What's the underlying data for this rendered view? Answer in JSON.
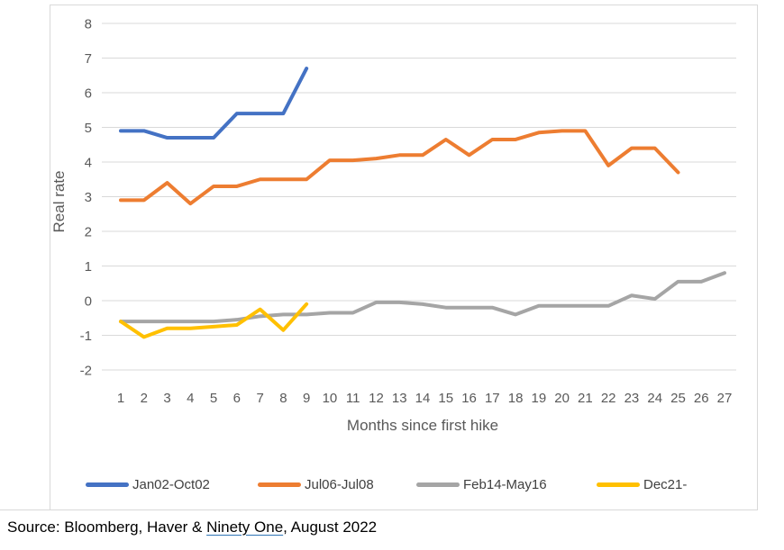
{
  "chart_data": {
    "type": "line",
    "title": "",
    "xlabel": "Months since first hike",
    "ylabel": "Real rate",
    "x": [
      1,
      2,
      3,
      4,
      5,
      6,
      7,
      8,
      9,
      10,
      11,
      12,
      13,
      14,
      15,
      16,
      17,
      18,
      19,
      20,
      21,
      22,
      23,
      24,
      25,
      26,
      27
    ],
    "yticks": [
      8,
      7,
      6,
      5,
      4,
      3,
      2,
      1,
      0,
      -1,
      -2
    ],
    "ylim": [
      -2,
      8
    ],
    "grid": "horizontal",
    "legend_position": "bottom",
    "series": [
      {
        "name": "Jan02-Oct02",
        "color": "#4472C4",
        "values": [
          4.9,
          4.9,
          4.7,
          4.7,
          4.7,
          5.4,
          5.4,
          5.4,
          6.7
        ]
      },
      {
        "name": "Jul06-Jul08",
        "color": "#ED7D31",
        "values": [
          2.9,
          2.9,
          3.4,
          2.8,
          3.3,
          3.3,
          3.5,
          3.5,
          3.5,
          4.05,
          4.05,
          4.1,
          4.2,
          4.2,
          4.65,
          4.2,
          4.65,
          4.65,
          4.85,
          4.9,
          4.9,
          3.9,
          4.4,
          4.4,
          3.7
        ]
      },
      {
        "name": "Feb14-May16",
        "color": "#A5A5A5",
        "values": [
          -0.6,
          -0.6,
          -0.6,
          -0.6,
          -0.6,
          -0.55,
          -0.45,
          -0.4,
          -0.4,
          -0.35,
          -0.35,
          -0.05,
          -0.05,
          -0.1,
          -0.2,
          -0.2,
          -0.2,
          -0.4,
          -0.15,
          -0.15,
          -0.15,
          -0.15,
          0.15,
          0.05,
          0.55,
          0.55,
          0.8
        ]
      },
      {
        "name": "Dec21-",
        "color": "#FFC000",
        "values": [
          -0.6,
          -1.05,
          -0.8,
          -0.8,
          -0.75,
          -0.7,
          -0.25,
          -0.85,
          -0.1
        ]
      }
    ]
  },
  "source": {
    "prefix": "Source: Bloomberg, Haver & ",
    "link_text": "Ninety One",
    "suffix": ", August 2022"
  },
  "colors": {
    "gridline": "#D9D9D9",
    "panel_border": "#D9D9D9",
    "axis_text": "#595959",
    "legend_text": "#404040",
    "link_underline": "#2E75B6"
  }
}
